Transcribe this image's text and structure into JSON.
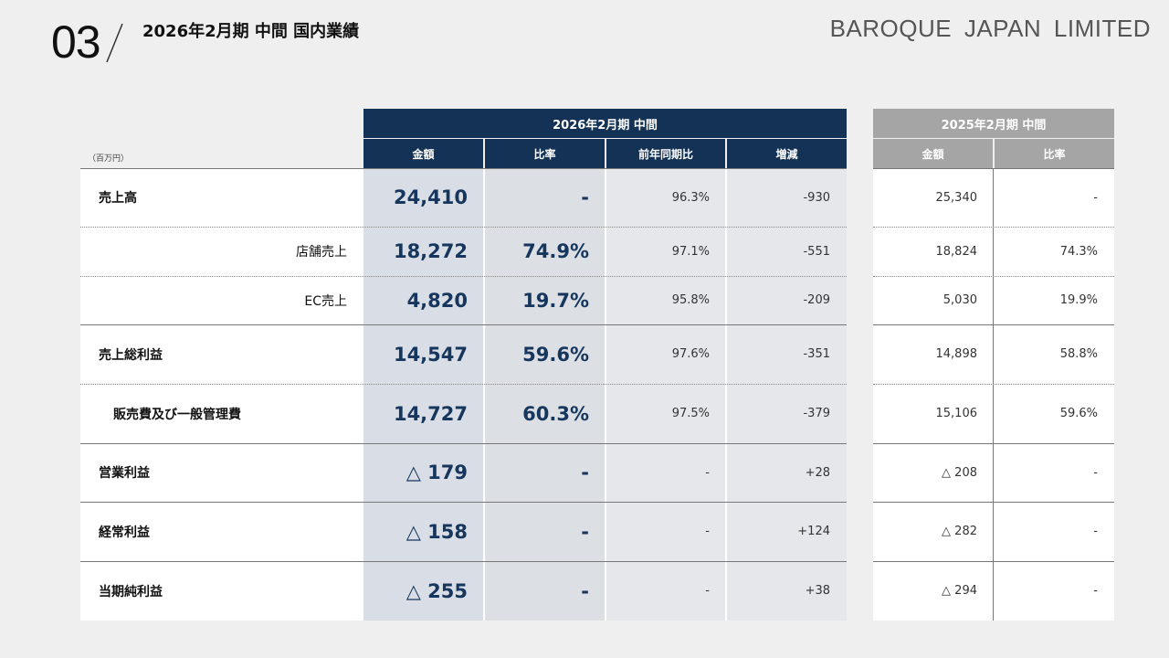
{
  "header": {
    "section_number": "03",
    "title": "2026年2月期 中間 国内業績",
    "brand": "BAROQUE JAPAN LIMITED"
  },
  "table": {
    "unit": "（百万円）",
    "current_period": "2026年2月期 中間",
    "prior_period": "2025年2月期 中間",
    "current_columns": [
      "金額",
      "比率",
      "前年同期比",
      "増減"
    ],
    "prior_columns": [
      "金額",
      "比率"
    ],
    "rows": [
      {
        "label": "売上高",
        "amount": "24,410",
        "ratio": "-",
        "yoy": "96.3%",
        "diff": "-930",
        "prior_amount": "25,340",
        "prior_ratio": "-"
      },
      {
        "label": "店舗売上",
        "amount": "18,272",
        "ratio": "74.9%",
        "yoy": "97.1%",
        "diff": "-551",
        "prior_amount": "18,824",
        "prior_ratio": "74.3%"
      },
      {
        "label": "EC売上",
        "amount": "4,820",
        "ratio": "19.7%",
        "yoy": "95.8%",
        "diff": "-209",
        "prior_amount": "5,030",
        "prior_ratio": "19.9%"
      },
      {
        "label": "売上総利益",
        "amount": "14,547",
        "ratio": "59.6%",
        "yoy": "97.6%",
        "diff": "-351",
        "prior_amount": "14,898",
        "prior_ratio": "58.8%"
      },
      {
        "label": "販売費及び一般管理費",
        "amount": "14,727",
        "ratio": "60.3%",
        "yoy": "97.5%",
        "diff": "-379",
        "prior_amount": "15,106",
        "prior_ratio": "59.6%"
      },
      {
        "label": "営業利益",
        "amount": "△ 179",
        "ratio": "-",
        "yoy": "-",
        "diff": "+28",
        "prior_amount": "△ 208",
        "prior_ratio": "-"
      },
      {
        "label": "経常利益",
        "amount": "△ 158",
        "ratio": "-",
        "yoy": "-",
        "diff": "+124",
        "prior_amount": "△ 282",
        "prior_ratio": "-"
      },
      {
        "label": "当期純利益",
        "amount": "△ 255",
        "ratio": "-",
        "yoy": "-",
        "diff": "+38",
        "prior_amount": "△ 294",
        "prior_ratio": "-"
      }
    ]
  }
}
